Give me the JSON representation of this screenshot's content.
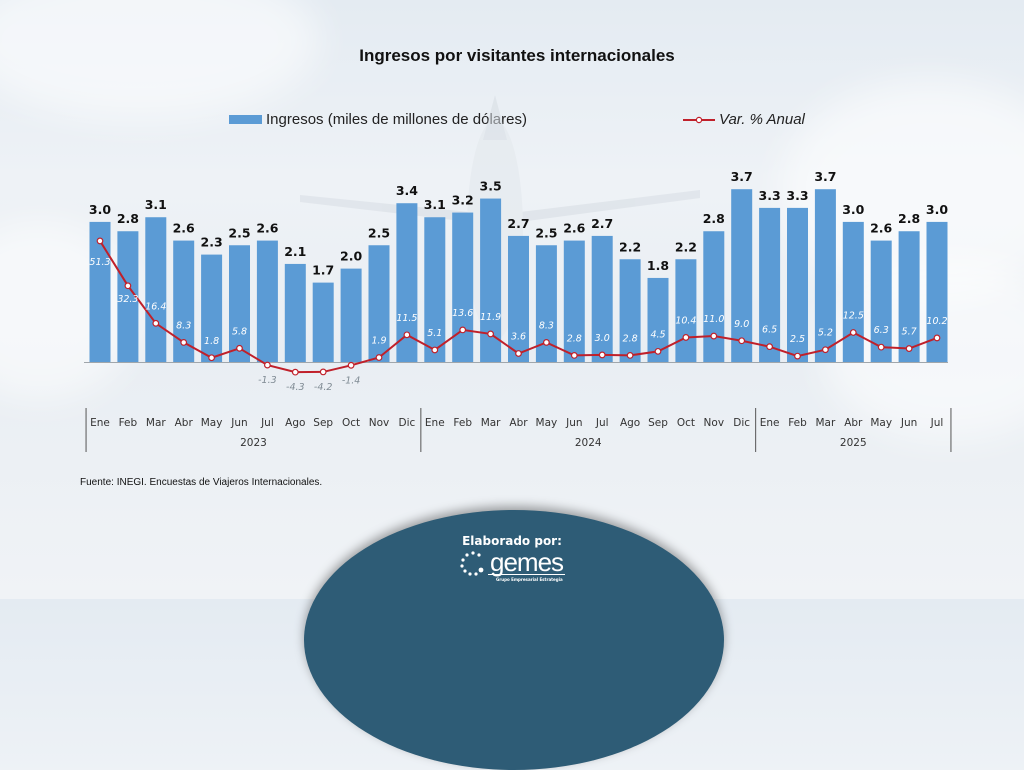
{
  "chart_data": {
    "type": "bar",
    "title": "Ingresos por visitantes internacionales",
    "categories": [
      "Ene",
      "Feb",
      "Mar",
      "Abr",
      "May",
      "Jun",
      "Jul",
      "Ago",
      "Sep",
      "Oct",
      "Nov",
      "Dic",
      "Ene",
      "Feb",
      "Mar",
      "Abr",
      "May",
      "Jun",
      "Jul",
      "Ago",
      "Sep",
      "Oct",
      "Nov",
      "Dic",
      "Ene",
      "Feb",
      "Mar",
      "Abr",
      "May",
      "Jun",
      "Jul"
    ],
    "year_groups": [
      {
        "label": "2023",
        "count": 12
      },
      {
        "label": "2024",
        "count": 12
      },
      {
        "label": "2025",
        "count": 7
      }
    ],
    "series": [
      {
        "name": "Ingresos (miles de millones de dólares)",
        "type": "bar",
        "color": "#5b9bd5",
        "values": [
          3.0,
          2.8,
          3.1,
          2.6,
          2.3,
          2.5,
          2.6,
          2.1,
          1.7,
          2.0,
          2.5,
          3.4,
          3.1,
          3.2,
          3.5,
          2.7,
          2.5,
          2.6,
          2.7,
          2.2,
          1.8,
          2.2,
          2.8,
          3.7,
          3.3,
          3.3,
          3.7,
          3.0,
          2.6,
          2.8,
          3.0
        ]
      },
      {
        "name": "Var. % Anual",
        "type": "line",
        "color": "#c0202a",
        "values": [
          51.3,
          32.3,
          16.4,
          8.3,
          1.8,
          5.8,
          -1.3,
          -4.3,
          -4.2,
          -1.4,
          1.9,
          11.5,
          5.1,
          13.6,
          11.9,
          3.6,
          8.3,
          2.8,
          3.0,
          2.8,
          4.5,
          10.4,
          11.0,
          9.0,
          6.5,
          2.5,
          5.2,
          12.5,
          6.3,
          5.7,
          10.2
        ]
      }
    ],
    "xlabel": "",
    "ylabel": "",
    "legend": "top",
    "grid": false
  },
  "legend": {
    "bar_label": "Ingresos (miles de millones de dólares)",
    "line_label": "Var. % Anual"
  },
  "source": "Fuente: INEGI. Encuestas de Viajeros Internacionales.",
  "footer": {
    "label": "Elaborado por:",
    "logo_name": "gemes",
    "logo_subtitle": "Grupo Empresarial Estrategia"
  }
}
